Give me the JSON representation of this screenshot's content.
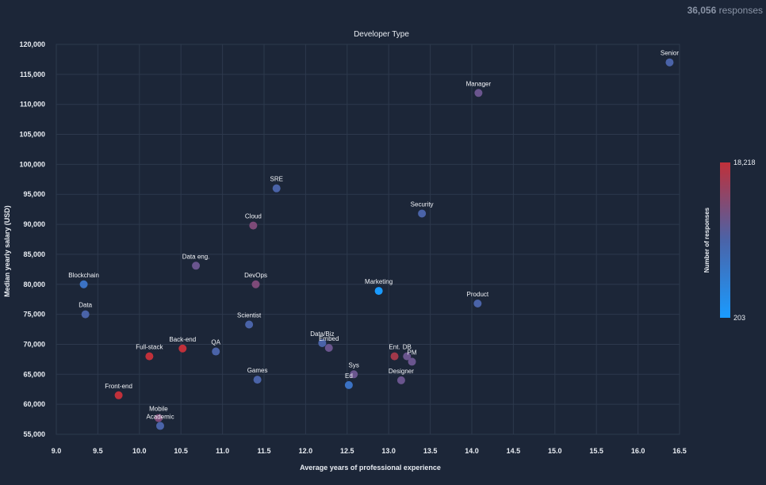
{
  "header": {
    "responses_count": "36,056",
    "responses_label": "responses"
  },
  "chart_data": {
    "type": "scatter",
    "title": "Developer Type",
    "xlabel": "Average years of professional experience",
    "ylabel": "Median yearly salary (USD)",
    "xlim": [
      9.0,
      16.5
    ],
    "ylim": [
      55000,
      120000
    ],
    "xticks": [
      "9.0",
      "9.5",
      "10.0",
      "10.5",
      "11.0",
      "11.5",
      "12.0",
      "12.5",
      "13.0",
      "13.5",
      "14.0",
      "14.5",
      "15.0",
      "15.5",
      "16.0",
      "16.5"
    ],
    "yticks": [
      "55,000",
      "60,000",
      "65,000",
      "70,000",
      "75,000",
      "80,000",
      "85,000",
      "90,000",
      "95,000",
      "100,000",
      "105,000",
      "110,000",
      "115,000",
      "120,000"
    ],
    "grid": true,
    "colorbar": {
      "label": "Number of responses",
      "min": 203,
      "max": 18218,
      "min_label": "203",
      "max_label": "18,218",
      "color_low": "#1a9bff",
      "color_mid": "#4a63a8",
      "color_high": "#c0303a"
    },
    "points": [
      {
        "label": "Senior",
        "x": 16.38,
        "y": 117000,
        "color": "#4a63a8"
      },
      {
        "label": "Manager",
        "x": 14.08,
        "y": 111900,
        "color": "#6a558e"
      },
      {
        "label": "SRE",
        "x": 11.65,
        "y": 96000,
        "color": "#4a63a8"
      },
      {
        "label": "Security",
        "x": 13.4,
        "y": 91800,
        "color": "#4a63a8"
      },
      {
        "label": "Cloud",
        "x": 11.37,
        "y": 89800,
        "color": "#7d4a78"
      },
      {
        "label": "Data eng.",
        "x": 10.68,
        "y": 83100,
        "color": "#6a558e"
      },
      {
        "label": "Blockchain",
        "x": 9.33,
        "y": 80000,
        "color": "#3b72c4"
      },
      {
        "label": "DevOps",
        "x": 11.4,
        "y": 80000,
        "color": "#7d4a78"
      },
      {
        "label": "Marketing",
        "x": 12.88,
        "y": 78900,
        "color": "#1a9bff"
      },
      {
        "label": "Product",
        "x": 14.07,
        "y": 76800,
        "color": "#4a63a8"
      },
      {
        "label": "Data",
        "x": 9.35,
        "y": 75000,
        "color": "#4a63a8"
      },
      {
        "label": "Scientist",
        "x": 11.32,
        "y": 73300,
        "color": "#4a63a8"
      },
      {
        "label": "Data/Biz",
        "x": 12.2,
        "y": 70200,
        "color": "#4a63a8"
      },
      {
        "label": "Embed",
        "x": 12.28,
        "y": 69400,
        "color": "#6a558e"
      },
      {
        "label": "Back-end",
        "x": 10.52,
        "y": 69300,
        "color": "#c0303a"
      },
      {
        "label": "QA",
        "x": 10.92,
        "y": 68800,
        "color": "#4a63a8"
      },
      {
        "label": "Full-stack",
        "x": 10.12,
        "y": 68000,
        "color": "#c0303a"
      },
      {
        "label": "Ent.",
        "x": 13.07,
        "y": 68000,
        "color": "#a0384a"
      },
      {
        "label": "DB",
        "x": 13.22,
        "y": 68000,
        "color": "#6a558e"
      },
      {
        "label": "PM",
        "x": 13.28,
        "y": 67100,
        "color": "#6a558e"
      },
      {
        "label": "Sys",
        "x": 12.58,
        "y": 65000,
        "color": "#6a558e"
      },
      {
        "label": "Games",
        "x": 11.42,
        "y": 64100,
        "color": "#4a63a8"
      },
      {
        "label": "Designer",
        "x": 13.15,
        "y": 64000,
        "color": "#6a558e"
      },
      {
        "label": "Ed",
        "x": 12.52,
        "y": 63200,
        "color": "#3b72c4"
      },
      {
        "label": "Front-end",
        "x": 9.75,
        "y": 61500,
        "color": "#c0303a"
      },
      {
        "label": "Mobile",
        "x": 10.23,
        "y": 57700,
        "color": "#7d4a78"
      },
      {
        "label": "Academic",
        "x": 10.25,
        "y": 56400,
        "color": "#4a63a8"
      }
    ]
  }
}
